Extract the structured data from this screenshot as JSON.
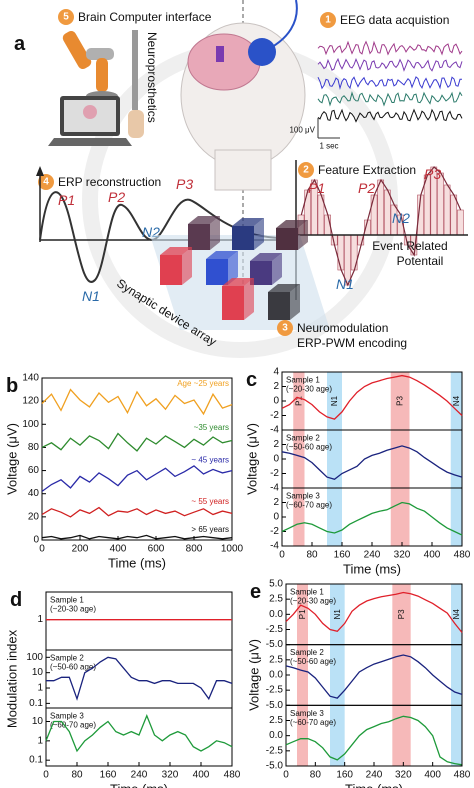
{
  "panel_a": {
    "label": "a",
    "bci": {
      "number": "5",
      "text": "Brain Computer interface"
    },
    "neuroprosthetics": "Neuroprosthetics",
    "eeg": {
      "number": "1",
      "text": "EEG data acquistion"
    },
    "scale_v": "100 μV",
    "scale_t": "1 sec",
    "erp_recon": {
      "number": "4",
      "text": "ERP reconstruction"
    },
    "recon_peaks": [
      "P1",
      "P2",
      "P3",
      "N1",
      "N2"
    ],
    "feature": {
      "number": "2",
      "text": "Feature Extraction"
    },
    "feature_peaks": [
      "P1",
      "P2",
      "P3",
      "N2",
      "N1"
    ],
    "erp_caption": [
      "Event Related",
      "Potentail"
    ],
    "array_label": "Synaptic device array",
    "neuromod": {
      "number": "3",
      "lines": [
        "Neuromodulation",
        "ERP-PWM encoding"
      ]
    }
  },
  "chart_data": [
    {
      "type": "line",
      "panel_label": "b",
      "xlabel": "Time (ms)",
      "ylabel": "Voltage (μV)",
      "xlim": [
        0,
        1000
      ],
      "xticks": [
        0,
        200,
        400,
        600,
        800,
        1000
      ],
      "ylim": [
        0,
        140
      ],
      "yticks": [
        0,
        20,
        40,
        60,
        80,
        100,
        120,
        140
      ],
      "x": [
        0,
        50,
        100,
        150,
        200,
        250,
        300,
        350,
        400,
        450,
        500,
        550,
        600,
        650,
        700,
        750,
        800,
        850,
        900,
        950,
        1000
      ],
      "series": [
        {
          "name": "Age ~25 years",
          "color": "#f0a020",
          "values": [
            118,
            126,
            112,
            130,
            121,
            115,
            127,
            119,
            124,
            110,
            128,
            116,
            122,
            113,
            125,
            118,
            121,
            109,
            126,
            114,
            117
          ]
        },
        {
          "name": "~35 years",
          "color": "#2e8b2e",
          "values": [
            80,
            84,
            78,
            88,
            82,
            90,
            86,
            79,
            92,
            84,
            77,
            88,
            83,
            90,
            85,
            80,
            87,
            82,
            89,
            84,
            86
          ]
        },
        {
          "name": "~ 45 years",
          "color": "#2a2aa8",
          "values": [
            42,
            48,
            52,
            45,
            55,
            50,
            58,
            53,
            47,
            56,
            60,
            52,
            57,
            62,
            55,
            59,
            64,
            57,
            61,
            58,
            60
          ]
        },
        {
          "name": "~ 55 years",
          "color": "#d02020",
          "values": [
            22,
            27,
            24,
            20,
            26,
            23,
            28,
            21,
            25,
            24,
            27,
            22,
            26,
            23,
            25,
            21,
            24,
            27,
            22,
            25,
            23
          ]
        },
        {
          "name": "> 65 years",
          "color": "#111111",
          "values": [
            2,
            3,
            1,
            2,
            4,
            1,
            3,
            2,
            1,
            3,
            2,
            4,
            1,
            2,
            3,
            1,
            2,
            3,
            2,
            1,
            2
          ]
        }
      ]
    },
    {
      "type": "line",
      "panel_label": "c",
      "xlabel": "Time (ms)",
      "ylabel": "Voltage (μV)",
      "xlim": [
        0,
        480
      ],
      "xticks": [
        0,
        80,
        160,
        240,
        320,
        400,
        480
      ],
      "x": [
        0,
        20,
        40,
        60,
        80,
        100,
        120,
        140,
        160,
        180,
        200,
        220,
        240,
        260,
        280,
        300,
        320,
        340,
        360,
        380,
        400,
        420,
        440,
        460,
        480
      ],
      "bands": [
        {
          "label": "P1",
          "range": [
            30,
            60
          ],
          "color": "#f08a8a"
        },
        {
          "label": "N1",
          "range": [
            120,
            160
          ],
          "color": "#8ccdf0"
        },
        {
          "label": "P3",
          "range": [
            290,
            340
          ],
          "color": "#f08a8a"
        },
        {
          "label": "N4",
          "range": [
            450,
            480
          ],
          "color": "#8ccdf0"
        }
      ],
      "subplots": [
        {
          "title": "Sample 1",
          "subtitle": "(~20-30 age)",
          "color": "#e0202a",
          "ylim": [
            -4,
            4
          ],
          "yticks": [
            -4,
            -2,
            0,
            2,
            4
          ],
          "values": [
            -1,
            -0.5,
            0.5,
            0.2,
            -0.5,
            -1.5,
            -2.2,
            -2.5,
            -1.5,
            0,
            1.2,
            2,
            2.5,
            2.8,
            3.1,
            3.3,
            3.5,
            3.3,
            2.8,
            2.2,
            1.5,
            0.8,
            0,
            -1,
            -2
          ]
        },
        {
          "title": "Sample 2",
          "subtitle": "(~50-60 age)",
          "color": "#1a237e",
          "ylim": [
            -4,
            4
          ],
          "yticks": [
            -4,
            -2,
            0,
            2
          ],
          "values": [
            1,
            0.8,
            0.5,
            0.2,
            -0.5,
            -1.5,
            -2.5,
            -2.8,
            -2,
            -1.5,
            -1,
            0,
            0.5,
            0.8,
            1.2,
            1.5,
            1.8,
            1.5,
            1,
            0.2,
            -0.5,
            -1.2,
            -1.8,
            -2.2,
            -2.5
          ]
        },
        {
          "title": "Sample 3",
          "subtitle": "(~60-70 age)",
          "color": "#1e9a3a",
          "ylim": [
            -4,
            4
          ],
          "yticks": [
            -4,
            -2,
            0,
            2
          ],
          "values": [
            -2,
            -1.5,
            -1,
            -0.8,
            -1,
            -1.5,
            -2,
            -2.2,
            -1.8,
            -1,
            -0.5,
            0,
            0.5,
            0.8,
            1,
            1.5,
            2,
            1.8,
            1.2,
            0.8,
            0,
            -0.8,
            -1.5,
            -2,
            -2.5
          ]
        }
      ]
    },
    {
      "type": "line",
      "panel_label": "d",
      "xlabel": "Time (ms)",
      "ylabel": "Modulation index",
      "log": true,
      "xlim": [
        0,
        480
      ],
      "xticks": [
        0,
        80,
        160,
        240,
        320,
        400,
        480
      ],
      "x": [
        0,
        20,
        40,
        60,
        80,
        100,
        120,
        140,
        160,
        180,
        200,
        220,
        240,
        260,
        280,
        300,
        320,
        340,
        360,
        380,
        400,
        420,
        440,
        460,
        480
      ],
      "subplots": [
        {
          "title": "Sample 1",
          "subtitle": "(~20-30 age)",
          "color": "#e0202a",
          "ylim": [
            0.3,
            3
          ],
          "yticks": [
            1
          ],
          "values": [
            1,
            1,
            1,
            1,
            1,
            1,
            1,
            1,
            1,
            1,
            1,
            1,
            1,
            1,
            1,
            1,
            1,
            1,
            1,
            1,
            1,
            1,
            1,
            1,
            1
          ]
        },
        {
          "title": "Sample 2",
          "subtitle": "(~50-60 age)",
          "color": "#1a237e",
          "ylim": [
            0.05,
            300
          ],
          "yticks": [
            0.1,
            1,
            10,
            100
          ],
          "values": [
            3,
            3,
            5,
            5,
            0.2,
            10,
            20,
            50,
            100,
            80,
            20,
            5,
            3,
            3,
            2,
            3,
            3,
            2,
            2,
            2,
            1,
            0.2,
            3,
            3,
            2
          ]
        },
        {
          "title": "Sample 3",
          "subtitle": "(~60-70 age)",
          "color": "#1e9a3a",
          "ylim": [
            0.05,
            50
          ],
          "yticks": [
            0.1,
            1,
            10
          ],
          "values": [
            1,
            10,
            10,
            3,
            0.3,
            1,
            2,
            5,
            10,
            3,
            2,
            3,
            2,
            20,
            2,
            1,
            2,
            3,
            2,
            0.5,
            0.3,
            0.5,
            1,
            0.8,
            0.5
          ]
        }
      ]
    },
    {
      "type": "line",
      "panel_label": "e",
      "xlabel": "Time (ms)",
      "ylabel": "Voltage (μV)",
      "xlim": [
        0,
        480
      ],
      "xticks": [
        0,
        80,
        160,
        240,
        320,
        400,
        480
      ],
      "x": [
        0,
        20,
        40,
        60,
        80,
        100,
        120,
        140,
        160,
        180,
        200,
        220,
        240,
        260,
        280,
        300,
        320,
        340,
        360,
        380,
        400,
        420,
        440,
        460,
        480
      ],
      "bands": [
        {
          "label": "P1",
          "range": [
            30,
            60
          ],
          "color": "#f08a8a"
        },
        {
          "label": "N1",
          "range": [
            120,
            160
          ],
          "color": "#8ccdf0"
        },
        {
          "label": "P3",
          "range": [
            290,
            340
          ],
          "color": "#f08a8a"
        },
        {
          "label": "N4",
          "range": [
            450,
            480
          ],
          "color": "#8ccdf0"
        }
      ],
      "subplots": [
        {
          "title": "Sample 1",
          "subtitle": "(~20-30 age)",
          "color": "#e0202a",
          "ylim": [
            -5,
            5
          ],
          "yticks": [
            {
              "value": -5,
              "label": "-5.0"
            },
            -2.5,
            {
              "value": 0,
              "label": "0.0"
            },
            2.5,
            {
              "value": 5,
              "label": "5.0"
            }
          ],
          "values": [
            -1.2,
            0,
            1.5,
            1,
            0,
            -1.5,
            -2.5,
            -2.8,
            -1.5,
            0.5,
            1.5,
            2.2,
            2.6,
            2.9,
            3.1,
            3.3,
            3.6,
            3.4,
            3,
            2.4,
            1.8,
            1,
            0.2,
            -1.5,
            -3
          ]
        },
        {
          "title": "Sample 2",
          "subtitle": "(~50-60 age)",
          "color": "#1a237e",
          "ylim": [
            -5,
            5
          ],
          "yticks": [
            {
              "value": -5,
              "label": "-5.0"
            },
            -2.5,
            {
              "value": 0,
              "label": "0.0"
            },
            2.5
          ],
          "values": [
            1.5,
            1.2,
            0.8,
            0.5,
            -0.5,
            -2,
            -3.5,
            -3.8,
            -2.5,
            -1,
            0.5,
            1.2,
            1.8,
            2.2,
            2.6,
            3,
            3.3,
            3,
            2.2,
            1.2,
            0,
            -1,
            -2,
            -2.8,
            -3.2
          ]
        },
        {
          "title": "Sample 3",
          "subtitle": "(~60-70 age)",
          "color": "#1e9a3a",
          "ylim": [
            -5,
            5
          ],
          "yticks": [
            {
              "value": -5,
              "label": "-5.0"
            },
            -2.5,
            {
              "value": 0,
              "label": "0.0"
            },
            2.5
          ],
          "values": [
            -1.5,
            -1,
            -0.5,
            -0.5,
            -1,
            -2,
            -3.5,
            -4,
            -3,
            -1.5,
            0,
            1,
            1.5,
            2,
            2.3,
            2.8,
            3.2,
            3,
            2.5,
            1.5,
            0,
            -3.5,
            -4.3,
            -4.6,
            -4.8
          ]
        }
      ]
    }
  ]
}
